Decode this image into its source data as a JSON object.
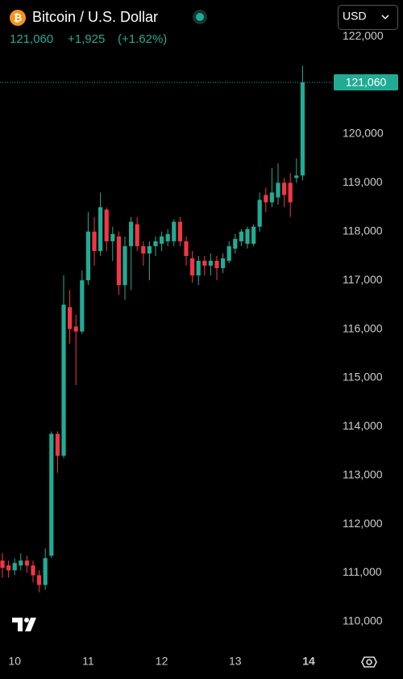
{
  "chart_data": {
    "type": "candlestick",
    "title": "Bitcoin / U.S. Dollar",
    "price": {
      "value": 121060,
      "label": "121,060"
    },
    "change": "+1,925",
    "change_percent": "(+1.62%)",
    "currency": "USD",
    "up_color": "#22ab94",
    "down_color": "#f23645",
    "categories": [
      null,
      null,
      "10",
      null,
      null,
      null,
      null,
      null,
      null,
      null,
      null,
      null,
      null,
      null,
      "11",
      null,
      null,
      null,
      null,
      null,
      null,
      null,
      null,
      null,
      null,
      null,
      "12",
      null,
      null,
      null,
      null,
      null,
      null,
      null,
      null,
      null,
      null,
      null,
      "13",
      null,
      null,
      null,
      null,
      null,
      null,
      null,
      null,
      null,
      null,
      null,
      "14"
    ],
    "open": [
      111250,
      111150,
      111050,
      111150,
      111250,
      111150,
      110950,
      110750,
      111350,
      113850,
      113400,
      116450,
      116050,
      115950,
      117000,
      118000,
      117600,
      118450,
      117800,
      117900,
      116900,
      117700,
      118150,
      117700,
      117550,
      117700,
      117750,
      117800,
      117800,
      118200,
      117800,
      117450,
      117100,
      117400,
      117300,
      117400,
      117250,
      117400,
      117650,
      117800,
      117750,
      117750,
      118100,
      118750,
      118600,
      118700,
      119000,
      119000,
      119100,
      119150,
      null
    ],
    "high": [
      111400,
      111250,
      111300,
      111400,
      111350,
      111250,
      111050,
      111500,
      113900,
      113900,
      117100,
      116800,
      116300,
      117200,
      118400,
      118300,
      118800,
      118500,
      118100,
      118000,
      117900,
      118300,
      118300,
      117800,
      117800,
      117900,
      118000,
      118050,
      118250,
      118300,
      117900,
      117600,
      117500,
      117500,
      117550,
      117500,
      117550,
      117800,
      117950,
      118050,
      118100,
      118150,
      118800,
      118900,
      119300,
      119400,
      119100,
      119200,
      119500,
      121400,
      null
    ],
    "low": [
      110900,
      110900,
      110950,
      111050,
      111000,
      110800,
      110600,
      110650,
      111300,
      113050,
      113350,
      115700,
      114850,
      115900,
      116900,
      117300,
      117500,
      117600,
      117400,
      116700,
      116600,
      116800,
      117600,
      117300,
      117000,
      117500,
      117600,
      117700,
      117700,
      117700,
      117300,
      116950,
      116900,
      117100,
      117100,
      117000,
      117150,
      117350,
      117550,
      117700,
      117650,
      117700,
      118000,
      118400,
      118500,
      118550,
      118500,
      118300,
      119000,
      119050,
      null
    ],
    "close": [
      111100,
      111050,
      111200,
      111250,
      111150,
      110950,
      110750,
      111300,
      113850,
      113400,
      116500,
      116000,
      115950,
      117000,
      118000,
      117600,
      118500,
      117800,
      117950,
      116900,
      117700,
      118200,
      117700,
      117550,
      117700,
      117800,
      117900,
      117950,
      118200,
      117800,
      117500,
      117100,
      117400,
      117300,
      117400,
      117250,
      117450,
      117700,
      117850,
      118000,
      118050,
      118100,
      118650,
      118600,
      118800,
      119000,
      118750,
      118600,
      119150,
      121060,
      null
    ],
    "ylim": [
      109500,
      122750
    ],
    "yticks": [
      {
        "value": 110000,
        "label": "110,000"
      },
      {
        "value": 111000,
        "label": "111,000"
      },
      {
        "value": 112000,
        "label": "112,000"
      },
      {
        "value": 113000,
        "label": "113,000"
      },
      {
        "value": 114000,
        "label": "114,000"
      },
      {
        "value": 115000,
        "label": "115,000"
      },
      {
        "value": 116000,
        "label": "116,000"
      },
      {
        "value": 117000,
        "label": "117,000"
      },
      {
        "value": 118000,
        "label": "118,000"
      },
      {
        "value": 119000,
        "label": "119,000"
      },
      {
        "value": 120000,
        "label": "120,000"
      },
      {
        "value": 121000,
        "label": "121,000"
      },
      {
        "value": 122000,
        "label": "122,000"
      }
    ],
    "grid": false
  }
}
